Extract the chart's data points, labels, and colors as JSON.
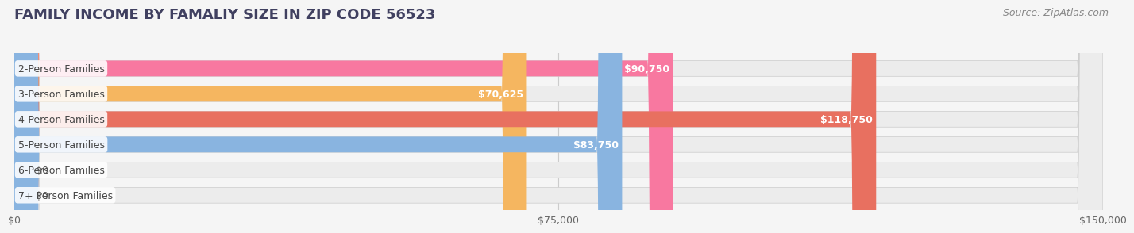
{
  "title": "FAMILY INCOME BY FAMALIY SIZE IN ZIP CODE 56523",
  "source": "Source: ZipAtlas.com",
  "categories": [
    "2-Person Families",
    "3-Person Families",
    "4-Person Families",
    "5-Person Families",
    "6-Person Families",
    "7+ Person Families"
  ],
  "values": [
    90750,
    70625,
    118750,
    83750,
    0,
    0
  ],
  "bar_colors": [
    "#F878A0",
    "#F5B660",
    "#E87060",
    "#89B4E0",
    "#C0A0D0",
    "#70C8C0"
  ],
  "xlim": [
    0,
    150000
  ],
  "xticks": [
    0,
    75000,
    150000
  ],
  "xtick_labels": [
    "$0",
    "$75,000",
    "$150,000"
  ],
  "title_color": "#404060",
  "title_fontsize": 13,
  "source_fontsize": 9,
  "label_fontsize": 9,
  "category_fontsize": 9,
  "value_label_inside_threshold": 30000,
  "bar_height": 0.62
}
